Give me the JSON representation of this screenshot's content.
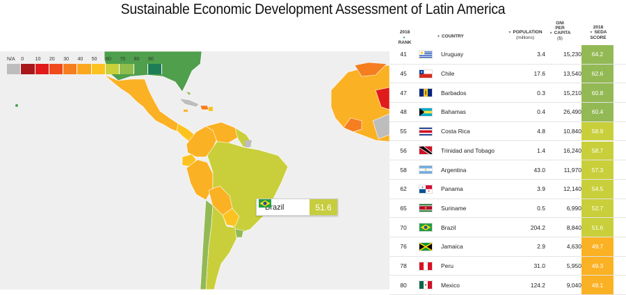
{
  "title": "Sustainable Economic Development Assessment of Latin America",
  "legend": {
    "labels": [
      "N/A",
      "0",
      "10",
      "20",
      "30",
      "40",
      "50",
      "60",
      "70",
      "80",
      "90"
    ],
    "colors": [
      "#bdbdbd",
      "#a8171a",
      "#e01b1b",
      "#ef4a1c",
      "#f57e20",
      "#fba81d",
      "#fcc320",
      "#c9d139",
      "#8fbe4c",
      "#4f9f4c",
      "#1d7d56"
    ]
  },
  "tooltip": {
    "country": "Brazil",
    "score": "51.6",
    "color": "#c6cd3e"
  },
  "table": {
    "headers": {
      "rank_line1": "2018",
      "rank_line2": "RANK",
      "country": "COUNTRY",
      "population_line1": "POPULATION",
      "population_line2": "(millions)",
      "gni_line1": "GNI",
      "gni_line2": "PER",
      "gni_line3": "CAPITA",
      "gni_line4": "($)",
      "score_line1": "2018",
      "score_line2": "SEDA",
      "score_line3": "SCORE"
    },
    "rows": [
      {
        "rank": "41",
        "country": "Uruguay",
        "population": "3.4",
        "gni": "15,230",
        "score": "64.2",
        "color": "#93b954",
        "flag": "uruguay"
      },
      {
        "rank": "45",
        "country": "Chile",
        "population": "17.6",
        "gni": "13,540",
        "score": "62.6",
        "color": "#93b954",
        "flag": "chile"
      },
      {
        "rank": "47",
        "country": "Barbados",
        "population": "0.3",
        "gni": "15,210",
        "score": "60.8",
        "color": "#93b954",
        "flag": "barbados"
      },
      {
        "rank": "48",
        "country": "Bahamas",
        "population": "0.4",
        "gni": "26,490",
        "score": "60.4",
        "color": "#93b954",
        "flag": "bahamas"
      },
      {
        "rank": "55",
        "country": "Costa Rica",
        "population": "4.8",
        "gni": "10,840",
        "score": "58.9",
        "color": "#c9cf3a",
        "flag": "costarica"
      },
      {
        "rank": "56",
        "country": "Trinidad and Tobago",
        "population": "1.4",
        "gni": "16,240",
        "score": "58.7",
        "color": "#c9cf3a",
        "flag": "trinidad"
      },
      {
        "rank": "58",
        "country": "Argentina",
        "population": "43.0",
        "gni": "11,970",
        "score": "57.3",
        "color": "#c9cf3a",
        "flag": "argentina"
      },
      {
        "rank": "62",
        "country": "Panama",
        "population": "3.9",
        "gni": "12,140",
        "score": "54.5",
        "color": "#c9cf3a",
        "flag": "panama"
      },
      {
        "rank": "65",
        "country": "Suriname",
        "population": "0.5",
        "gni": "6,990",
        "score": "52.7",
        "color": "#c9cf3a",
        "flag": "suriname"
      },
      {
        "rank": "70",
        "country": "Brazil",
        "population": "204.2",
        "gni": "8,840",
        "score": "51.6",
        "color": "#c9cf3a",
        "flag": "brazil"
      },
      {
        "rank": "76",
        "country": "Jamaica",
        "population": "2.9",
        "gni": "4,630",
        "score": "49.7",
        "color": "#fbb124",
        "flag": "jamaica"
      },
      {
        "rank": "78",
        "country": "Peru",
        "population": "31.0",
        "gni": "5,950",
        "score": "49.3",
        "color": "#fbb124",
        "flag": "peru"
      },
      {
        "rank": "80",
        "country": "Mexico",
        "population": "124.2",
        "gni": "9,040",
        "score": "49.1",
        "color": "#fbb124",
        "flag": "mexico"
      }
    ]
  }
}
